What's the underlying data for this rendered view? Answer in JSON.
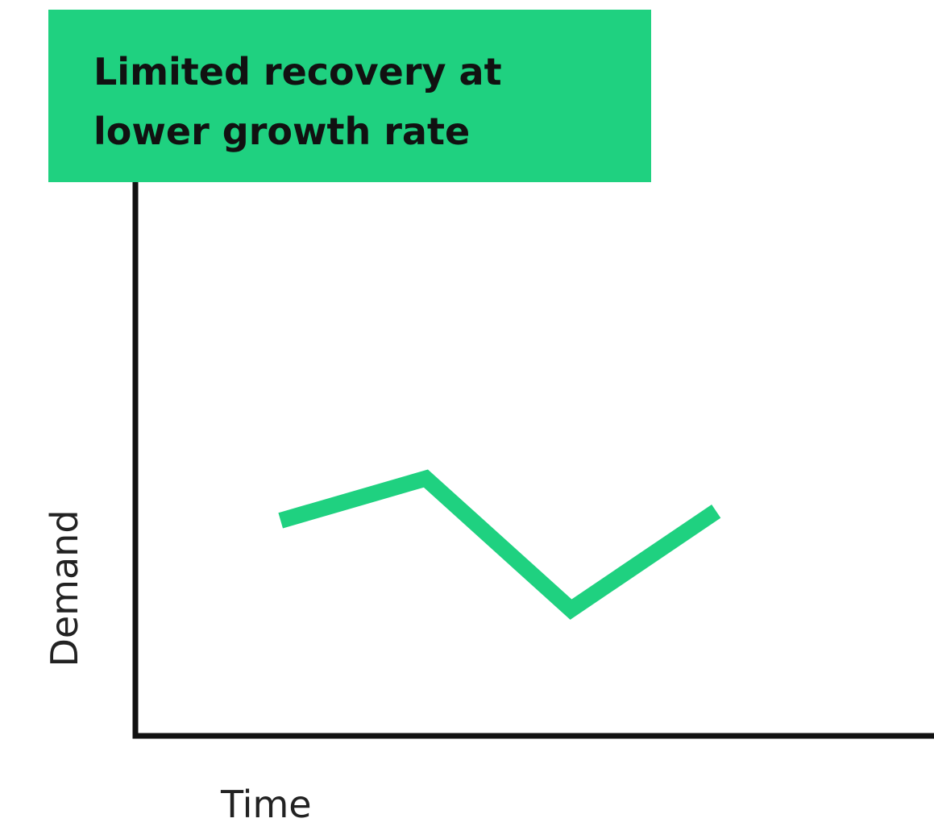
{
  "chart_data": {
    "type": "line",
    "title": "Limited recovery at\nlower growth rate",
    "xlabel": "Time",
    "ylabel": "Demand",
    "x": [
      1,
      2,
      3,
      4
    ],
    "series": [
      {
        "values": [
          4.6,
          5.5,
          2.7,
          4.8
        ]
      }
    ],
    "xlim": [
      0,
      5.5
    ],
    "ylim": [
      0,
      14
    ],
    "grid": false,
    "colors": {
      "line": "#1fd180",
      "title_bg": "#1fd180",
      "axis": "#111111"
    }
  }
}
